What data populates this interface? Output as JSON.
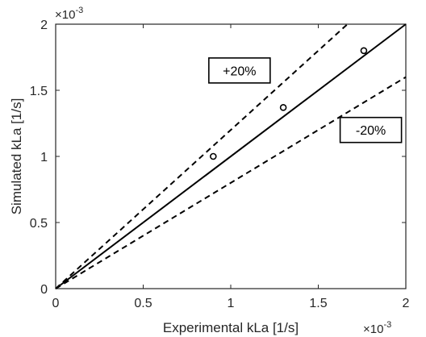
{
  "chart_data": {
    "type": "scatter",
    "xlabel": "Experimental kLa [1/s]",
    "ylabel": "Simulated kLa [1/s]",
    "x_exponent": "×10",
    "x_exponent_power": "-3",
    "y_exponent": "×10",
    "y_exponent_power": "-3",
    "xlim": [
      0,
      2
    ],
    "ylim": [
      0,
      2
    ],
    "xticks": [
      "0",
      "0.5",
      "1",
      "1.5",
      "2"
    ],
    "yticks": [
      "0",
      "0.5",
      "1",
      "1.5",
      "2"
    ],
    "grid": false,
    "series": [
      {
        "marker": "circle",
        "x": [
          0.9,
          1.3,
          1.76
        ],
        "y": [
          1.0,
          1.37,
          1.8
        ]
      }
    ],
    "lines": [
      {
        "style": "solid",
        "slope": 1.0
      },
      {
        "style": "dashed",
        "slope": 1.2
      },
      {
        "style": "dashed",
        "slope": 0.8
      }
    ],
    "annotations": [
      {
        "text": "+20%",
        "x": 1.05,
        "y": 1.65
      },
      {
        "text": "-20%",
        "x": 1.8,
        "y": 1.2
      }
    ],
    "colors": {
      "axis": "#262626",
      "lines": "#000000"
    }
  }
}
